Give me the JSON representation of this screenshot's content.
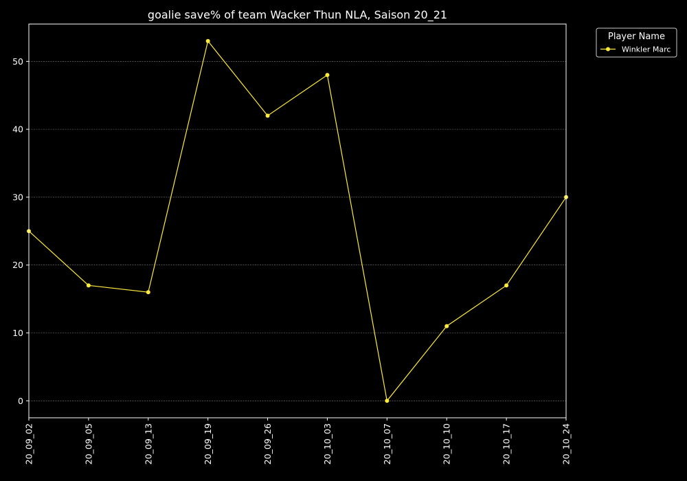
{
  "chart_data": {
    "type": "line",
    "title": "goalie save% of team Wacker Thun NLA, Saison 20_21",
    "xlabel": "",
    "ylabel": "",
    "categories": [
      "20_09_02",
      "20_09_05",
      "20_09_13",
      "20_09_19",
      "20_09_26",
      "20_10_03",
      "20_10_07",
      "20_10_10",
      "20_10_17",
      "20_10_24"
    ],
    "series": [
      {
        "name": "Winkler Marc",
        "values": [
          25,
          17,
          16,
          53,
          42,
          48,
          0,
          11,
          17,
          30
        ],
        "color": "#ffeb3b"
      }
    ],
    "ylim": [
      -2.5,
      55.5
    ],
    "yticks": [
      0,
      10,
      20,
      30,
      40,
      50
    ],
    "grid": true,
    "legend": {
      "title": "Player Name",
      "placement": "outside-top-right"
    },
    "colors": {
      "background": "#000000",
      "axes": "#ffffff",
      "grid": "#808080",
      "text": "#ffffff"
    }
  }
}
